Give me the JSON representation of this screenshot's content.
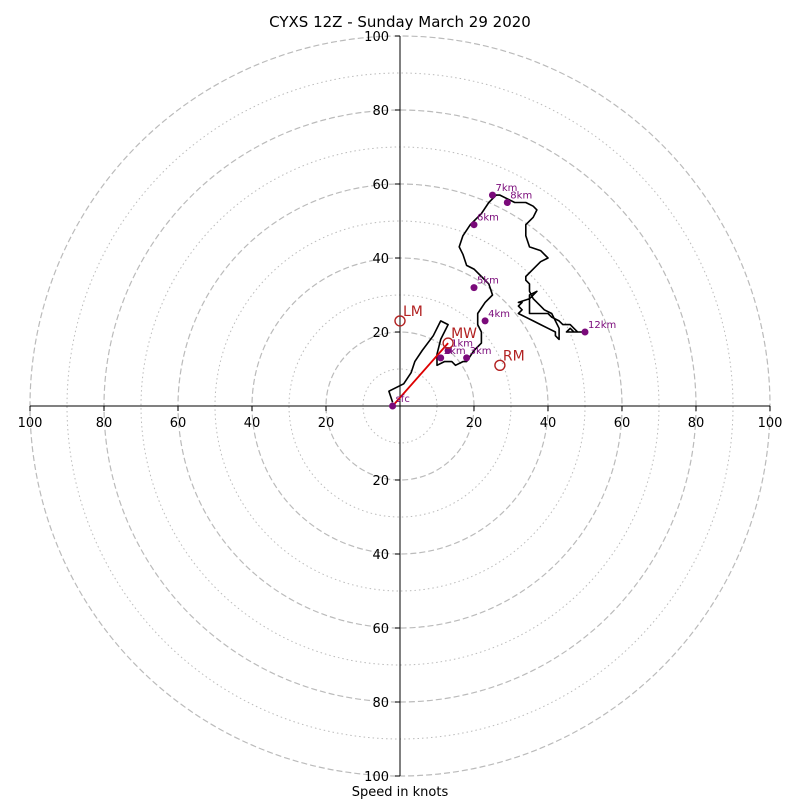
{
  "chart_data": {
    "type": "line",
    "title": "CYXS 12Z - Sunday March 29 2020",
    "xlabel": "Speed in knots",
    "ylabel": "",
    "xlim": [
      -100,
      100
    ],
    "ylim": [
      -100,
      100
    ],
    "grid": true,
    "ring_major": [
      20,
      40,
      60,
      80,
      100
    ],
    "ring_minor": [
      10,
      30,
      50,
      70,
      90
    ],
    "ticks": {
      "x_left": [
        "100",
        "80",
        "60",
        "40",
        "20"
      ],
      "x_right": [
        "20",
        "40",
        "60",
        "80",
        "100"
      ],
      "y_top": [
        "100",
        "80",
        "60",
        "40",
        "20"
      ],
      "y_bottom": [
        "20",
        "40",
        "60",
        "80",
        "100"
      ]
    },
    "hodograph": {
      "x": [
        -2,
        -3,
        1,
        3,
        4,
        6,
        9,
        11,
        13,
        11,
        10,
        10,
        12,
        14,
        15,
        17,
        18,
        20,
        22,
        22,
        21,
        21,
        23,
        25,
        24,
        22,
        20,
        18,
        17,
        16,
        17,
        19,
        22,
        24,
        26,
        27,
        29,
        31,
        34,
        36,
        37,
        36,
        34,
        34,
        35,
        38,
        40,
        38,
        36,
        34,
        34,
        35,
        35,
        36,
        38,
        39,
        41,
        42,
        43,
        43,
        43,
        43,
        43,
        42,
        42,
        40,
        38,
        36,
        34,
        32,
        33,
        32,
        33,
        32,
        35,
        36,
        37,
        35,
        35,
        35,
        35,
        35,
        36,
        38,
        40,
        41,
        43,
        44,
        46,
        47,
        48,
        49,
        50,
        50,
        50,
        50,
        49,
        48,
        47,
        47,
        46,
        46,
        45,
        46,
        46,
        47,
        48,
        48
      ],
      "y": [
        1,
        4,
        6,
        9,
        12,
        15,
        19,
        23,
        22,
        18,
        14,
        11,
        12,
        12,
        11,
        12,
        12,
        15,
        17,
        20,
        22,
        25,
        28,
        30,
        33,
        35,
        37,
        38,
        41,
        43,
        46,
        49,
        52,
        55,
        57,
        57,
        56,
        55,
        55,
        54,
        53,
        51,
        49,
        46,
        43,
        42,
        40,
        39,
        37,
        35,
        34,
        33,
        31,
        29,
        27,
        26,
        25,
        23,
        21,
        20,
        19,
        18,
        18,
        19,
        20,
        21,
        22,
        23,
        24,
        25,
        26,
        27,
        28,
        28,
        29,
        30,
        31,
        30,
        29,
        27,
        26,
        25,
        25,
        25,
        25,
        24,
        23,
        22,
        22,
        21,
        20,
        20,
        20,
        20,
        20,
        20,
        20,
        20,
        20,
        20,
        21,
        21,
        20,
        20,
        20,
        20,
        20,
        20
      ]
    },
    "height_points": [
      {
        "label": "sfc",
        "x": -2,
        "y": 0
      },
      {
        "label": "1km",
        "x": 13,
        "y": 15
      },
      {
        "label": "2km",
        "x": 11,
        "y": 13
      },
      {
        "label": "3km",
        "x": 18,
        "y": 13
      },
      {
        "label": "4km",
        "x": 23,
        "y": 23
      },
      {
        "label": "5km",
        "x": 20,
        "y": 32
      },
      {
        "label": "6km",
        "x": 20,
        "y": 49
      },
      {
        "label": "7km",
        "x": 25,
        "y": 57
      },
      {
        "label": "8km",
        "x": 29,
        "y": 55
      },
      {
        "label": "12km",
        "x": 50,
        "y": 20
      }
    ],
    "motions": [
      {
        "label": "LM",
        "x": 0,
        "y": 23
      },
      {
        "label": "MW",
        "x": 13,
        "y": 17
      },
      {
        "label": "RM",
        "x": 27,
        "y": 11
      }
    ],
    "shear_vector": {
      "from": [
        -2,
        0
      ],
      "to": [
        13,
        17
      ]
    },
    "colors": {
      "hodograph": "#000000",
      "points": "#7a0a7a",
      "motions": "#b22222",
      "shear": "#dd0000",
      "grid": "#bbbbbb"
    }
  }
}
